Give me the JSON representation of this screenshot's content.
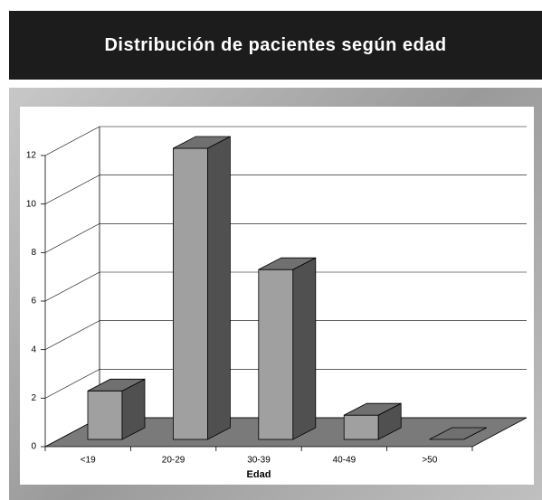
{
  "chart_data": {
    "type": "bar3d",
    "title": "Distribución de pacientes según edad",
    "x_label": "Edad",
    "categories": [
      "<19",
      "20-29",
      "30-39",
      "40-49",
      ">50"
    ],
    "values": [
      2,
      12,
      7,
      1,
      0
    ],
    "ylim": [
      0,
      12
    ],
    "yticks": [
      0,
      2,
      4,
      6,
      8,
      10,
      12
    ],
    "grid": true,
    "color": "#a0a0a0"
  }
}
